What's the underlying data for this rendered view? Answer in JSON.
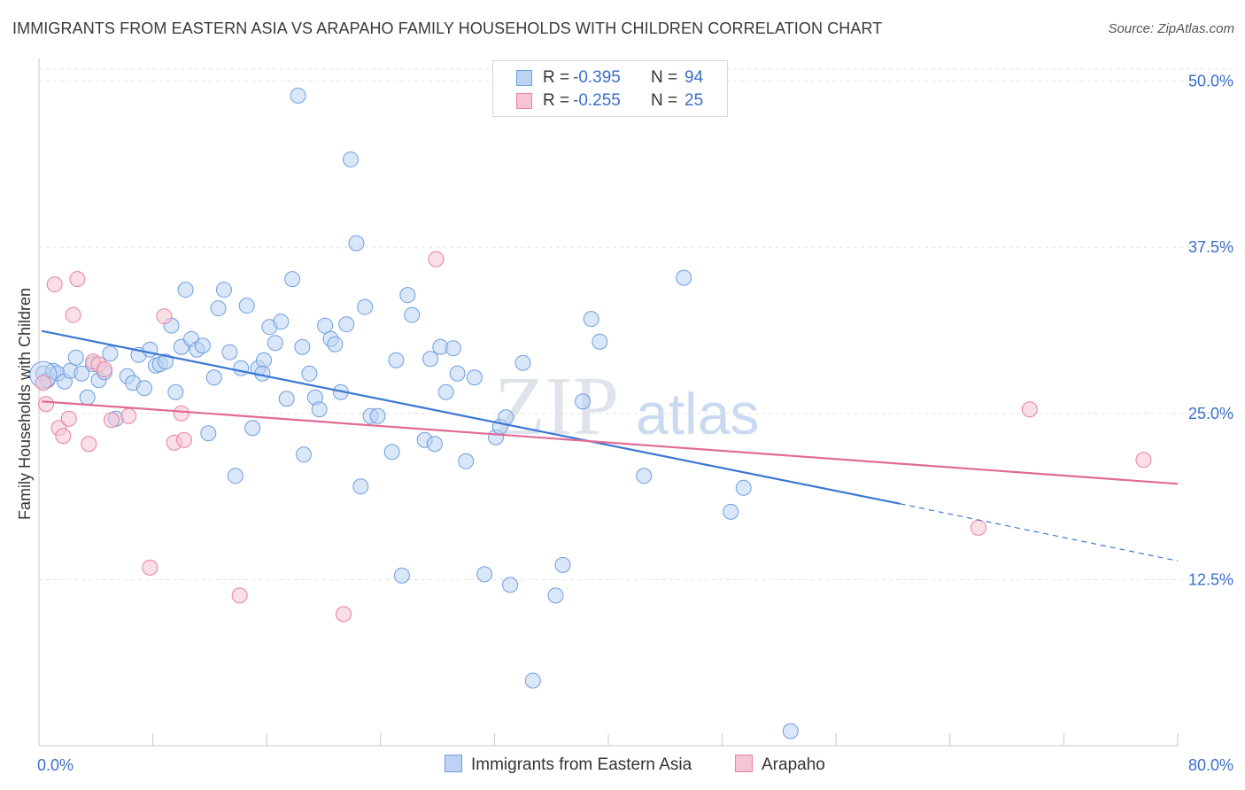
{
  "header": {
    "title": "IMMIGRANTS FROM EASTERN ASIA VS ARAPAHO FAMILY HOUSEHOLDS WITH CHILDREN CORRELATION CHART",
    "source": "Source: ZipAtlas.com"
  },
  "watermark": {
    "part1": "ZIP",
    "part2": "atlas"
  },
  "legend": {
    "r_label": "R =",
    "n_label": "N =",
    "rows": [
      {
        "r": "-0.395",
        "n": "94",
        "color": "#6e9ee0",
        "fill": "#bcd3f4"
      },
      {
        "r": "-0.255",
        "n": "25",
        "color": "#e8809f",
        "fill": "#f7c4d4"
      }
    ]
  },
  "chart_data": {
    "type": "scatter",
    "title": "IMMIGRANTS FROM EASTERN ASIA VS ARAPAHO FAMILY HOUSEHOLDS WITH CHILDREN CORRELATION CHART",
    "xlabel": "",
    "ylabel": "Family Households with Children",
    "xlim": [
      0,
      80
    ],
    "ylim": [
      0,
      50.9
    ],
    "x_tick_labels": [
      "0.0%",
      "80.0%"
    ],
    "y_ticks": [
      12.5,
      25.0,
      37.5,
      50.0
    ],
    "y_tick_labels": [
      "12.5%",
      "25.0%",
      "37.5%",
      "50.0%"
    ],
    "grid": true,
    "legend_position": "top-center",
    "series": [
      {
        "name": "Immigrants from Eastern Asia",
        "color": "#3a78d4",
        "fill": "#bcd3f4",
        "edge": "#6e9ee0",
        "trend": {
          "x0": 0.2,
          "y0": 31.2,
          "x1": 60.5,
          "y1": 18.2,
          "x_dash_end": 80,
          "y_dash_end": 13.9
        },
        "points": [
          [
            0.3,
            28.0
          ],
          [
            0.6,
            27.5
          ],
          [
            1.0,
            28.2
          ],
          [
            1.3,
            28.0
          ],
          [
            1.8,
            27.4
          ],
          [
            2.2,
            28.2
          ],
          [
            2.6,
            29.2
          ],
          [
            3.0,
            28.0
          ],
          [
            3.4,
            26.2
          ],
          [
            3.8,
            28.7
          ],
          [
            4.2,
            27.5
          ],
          [
            4.6,
            28.1
          ],
          [
            5.0,
            29.5
          ],
          [
            5.4,
            24.6
          ],
          [
            6.2,
            27.8
          ],
          [
            6.6,
            27.3
          ],
          [
            7.0,
            29.4
          ],
          [
            7.4,
            26.9
          ],
          [
            7.8,
            29.8
          ],
          [
            8.2,
            28.6
          ],
          [
            8.5,
            28.7
          ],
          [
            8.9,
            28.9
          ],
          [
            9.3,
            31.6
          ],
          [
            9.6,
            26.6
          ],
          [
            10.0,
            30.0
          ],
          [
            10.3,
            34.3
          ],
          [
            10.7,
            30.6
          ],
          [
            11.1,
            29.8
          ],
          [
            11.5,
            30.1
          ],
          [
            11.9,
            23.5
          ],
          [
            12.3,
            27.7
          ],
          [
            12.6,
            32.9
          ],
          [
            13.0,
            34.3
          ],
          [
            13.4,
            29.6
          ],
          [
            13.8,
            20.3
          ],
          [
            14.2,
            28.4
          ],
          [
            14.6,
            33.1
          ],
          [
            15.0,
            23.9
          ],
          [
            15.4,
            28.4
          ],
          [
            15.8,
            29.0
          ],
          [
            16.2,
            31.5
          ],
          [
            16.6,
            30.3
          ],
          [
            17.0,
            31.9
          ],
          [
            17.4,
            26.1
          ],
          [
            17.8,
            35.1
          ],
          [
            18.2,
            48.9
          ],
          [
            18.6,
            21.9
          ],
          [
            19.0,
            28.0
          ],
          [
            19.4,
            26.2
          ],
          [
            19.7,
            25.3
          ],
          [
            20.1,
            31.6
          ],
          [
            20.5,
            30.6
          ],
          [
            20.8,
            30.2
          ],
          [
            21.2,
            26.6
          ],
          [
            21.6,
            31.7
          ],
          [
            21.9,
            44.1
          ],
          [
            22.3,
            37.8
          ],
          [
            22.6,
            19.5
          ],
          [
            22.9,
            33.0
          ],
          [
            23.3,
            24.8
          ],
          [
            23.8,
            24.8
          ],
          [
            24.8,
            22.1
          ],
          [
            25.1,
            29.0
          ],
          [
            25.5,
            12.8
          ],
          [
            25.9,
            33.9
          ],
          [
            26.2,
            32.4
          ],
          [
            27.1,
            23.0
          ],
          [
            27.5,
            29.1
          ],
          [
            27.8,
            22.7
          ],
          [
            28.2,
            30.0
          ],
          [
            28.6,
            26.6
          ],
          [
            29.1,
            29.9
          ],
          [
            29.4,
            28.0
          ],
          [
            30.0,
            21.4
          ],
          [
            30.6,
            27.7
          ],
          [
            31.3,
            12.9
          ],
          [
            32.1,
            23.2
          ],
          [
            32.4,
            24.0
          ],
          [
            32.8,
            24.7
          ],
          [
            33.1,
            12.1
          ],
          [
            34.0,
            28.8
          ],
          [
            34.7,
            4.9
          ],
          [
            36.3,
            11.3
          ],
          [
            36.8,
            13.6
          ],
          [
            38.2,
            25.9
          ],
          [
            38.8,
            32.1
          ],
          [
            39.4,
            30.4
          ],
          [
            42.5,
            20.3
          ],
          [
            45.3,
            35.2
          ],
          [
            48.6,
            17.6
          ],
          [
            49.5,
            19.4
          ],
          [
            52.8,
            1.1
          ],
          [
            18.5,
            30.0
          ],
          [
            15.7,
            28.0
          ]
        ]
      },
      {
        "name": "Arapaho",
        "color": "#e06b95",
        "fill": "#f7c4d4",
        "edge": "#e8809f",
        "trend": {
          "x0": 0.2,
          "y0": 25.9,
          "x1": 80,
          "y1": 19.7
        },
        "points": [
          [
            0.5,
            25.7
          ],
          [
            1.1,
            34.7
          ],
          [
            1.4,
            23.9
          ],
          [
            1.7,
            23.3
          ],
          [
            2.1,
            24.6
          ],
          [
            2.4,
            32.4
          ],
          [
            2.7,
            35.1
          ],
          [
            3.5,
            22.7
          ],
          [
            3.8,
            28.9
          ],
          [
            4.2,
            28.7
          ],
          [
            4.6,
            28.3
          ],
          [
            5.1,
            24.5
          ],
          [
            6.3,
            24.8
          ],
          [
            7.8,
            13.4
          ],
          [
            8.8,
            32.3
          ],
          [
            9.5,
            22.8
          ],
          [
            10.0,
            25.0
          ],
          [
            10.2,
            23.0
          ],
          [
            14.1,
            11.3
          ],
          [
            21.4,
            9.9
          ],
          [
            27.9,
            36.6
          ],
          [
            69.6,
            25.3
          ],
          [
            66.0,
            16.4
          ],
          [
            77.6,
            21.5
          ],
          [
            0.3,
            27.3
          ]
        ]
      }
    ]
  }
}
